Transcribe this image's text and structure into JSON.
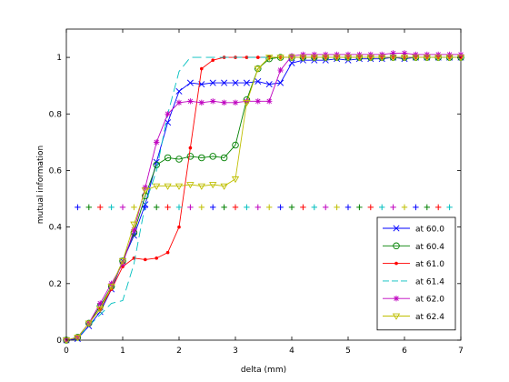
{
  "chart_data": {
    "type": "line",
    "title": "",
    "xlabel": "delta (mm)",
    "ylabel": "mutual information",
    "xlim": [
      0,
      7
    ],
    "ylim": [
      0,
      1.1
    ],
    "xticks": [
      0,
      1,
      2,
      3,
      4,
      5,
      6,
      7
    ],
    "yticks": [
      0,
      0.2,
      0.4,
      0.6,
      0.8,
      1
    ],
    "xtick_labels": [
      "0",
      "1",
      "2",
      "3",
      "4",
      "5",
      "6",
      "7"
    ],
    "ytick_labels": [
      "0",
      "0.2",
      "0.4",
      "0.6",
      "0.8",
      "1"
    ],
    "grid": false,
    "legend_position": "bottom-right",
    "x": [
      0,
      0.2,
      0.4,
      0.6,
      0.8,
      1.0,
      1.2,
      1.4,
      1.6,
      1.8,
      2.0,
      2.2,
      2.4,
      2.6,
      2.8,
      3.0,
      3.2,
      3.4,
      3.6,
      3.8,
      4.0,
      4.2,
      4.4,
      4.6,
      4.8,
      5.0,
      5.2,
      5.4,
      5.6,
      5.8,
      6.0,
      6.2,
      6.4,
      6.6,
      6.8,
      7.0
    ],
    "series": [
      {
        "name": "at 60.0",
        "color": "#0000ff",
        "marker": "x",
        "dash": "",
        "values": [
          0,
          0.005,
          0.05,
          0.1,
          0.18,
          0.28,
          0.37,
          0.48,
          0.63,
          0.77,
          0.88,
          0.91,
          0.905,
          0.91,
          0.91,
          0.91,
          0.91,
          0.915,
          0.905,
          0.91,
          0.98,
          0.99,
          0.99,
          0.99,
          0.995,
          0.99,
          0.995,
          0.995,
          0.995,
          1.0,
          0.995,
          1.0,
          1.0,
          1.0,
          1.0,
          1.0
        ]
      },
      {
        "name": "at 60.4",
        "color": "#008000",
        "marker": "o",
        "dash": "",
        "values": [
          0,
          0.01,
          0.06,
          0.12,
          0.19,
          0.28,
          0.38,
          0.51,
          0.62,
          0.645,
          0.64,
          0.65,
          0.645,
          0.65,
          0.645,
          0.69,
          0.85,
          0.96,
          0.995,
          1.0,
          1.0,
          1.0,
          1.0,
          1.0,
          1.0,
          1.0,
          1.0,
          1.0,
          1.0,
          1.0,
          1.0,
          1.0,
          1.0,
          1.0,
          1.0,
          1.0
        ]
      },
      {
        "name": "at 61.0",
        "color": "#ff0000",
        "marker": "dot",
        "dash": "",
        "values": [
          0,
          0.01,
          0.06,
          0.11,
          0.18,
          0.26,
          0.29,
          0.285,
          0.29,
          0.31,
          0.4,
          0.68,
          0.96,
          0.99,
          1.0,
          1.0,
          1.0,
          1.0,
          1.0,
          1.0,
          1.0,
          1.0,
          1.0,
          1.0,
          1.0,
          1.0,
          1.0,
          1.0,
          1.0,
          1.0,
          1.0,
          1.0,
          1.0,
          1.0,
          1.0,
          1.0
        ]
      },
      {
        "name": "at 61.4",
        "color": "#00bfbf",
        "marker": "none",
        "dash": "10,5",
        "values": [
          0,
          0.01,
          0.05,
          0.09,
          0.13,
          0.14,
          0.27,
          0.48,
          0.6,
          0.8,
          0.95,
          1.0,
          1.0,
          1.0,
          1.0,
          1.0,
          1.0,
          1.0,
          1.0,
          1.0,
          1.0,
          1.0,
          1.0,
          1.0,
          1.0,
          1.0,
          1.0,
          1.0,
          1.0,
          1.0,
          1.0,
          1.0,
          1.0,
          1.0,
          1.0,
          1.0
        ]
      },
      {
        "name": "at 62.0",
        "color": "#bf00bf",
        "marker": "star",
        "dash": "",
        "values": [
          0,
          0.01,
          0.06,
          0.13,
          0.2,
          0.27,
          0.39,
          0.54,
          0.7,
          0.8,
          0.84,
          0.845,
          0.84,
          0.845,
          0.84,
          0.84,
          0.845,
          0.845,
          0.845,
          0.955,
          1.005,
          1.01,
          1.01,
          1.01,
          1.01,
          1.01,
          1.01,
          1.01,
          1.01,
          1.015,
          1.015,
          1.01,
          1.01,
          1.01,
          1.01,
          1.01
        ]
      },
      {
        "name": "at 62.4",
        "color": "#bfbf00",
        "marker": "triangle-down",
        "dash": "",
        "values": [
          0,
          0.01,
          0.06,
          0.11,
          0.19,
          0.28,
          0.41,
          0.53,
          0.545,
          0.545,
          0.545,
          0.55,
          0.545,
          0.55,
          0.545,
          0.57,
          0.84,
          0.96,
          1.0,
          1.0,
          1.0,
          1.0,
          1.0,
          1.0,
          1.0,
          1.0,
          1.0,
          1.0,
          1.0,
          1.0,
          1.0,
          1.0,
          1.0,
          1.0,
          1.0,
          1.0
        ]
      }
    ],
    "reference_line": {
      "y": 0.47,
      "marker": "plus",
      "colors": [
        "#0000ff",
        "#008000",
        "#ff0000",
        "#00bfbf",
        "#bf00bf",
        "#bfbf00"
      ],
      "x": [
        0.2,
        0.4,
        0.6,
        0.8,
        1.0,
        1.2,
        1.4,
        1.6,
        1.8,
        2.0,
        2.2,
        2.4,
        2.6,
        2.8,
        3.0,
        3.2,
        3.4,
        3.6,
        3.8,
        4.0,
        4.2,
        4.4,
        4.6,
        4.8,
        5.0,
        5.2,
        5.4,
        5.6,
        5.8,
        6.0,
        6.2,
        6.4,
        6.6,
        6.8
      ]
    }
  }
}
